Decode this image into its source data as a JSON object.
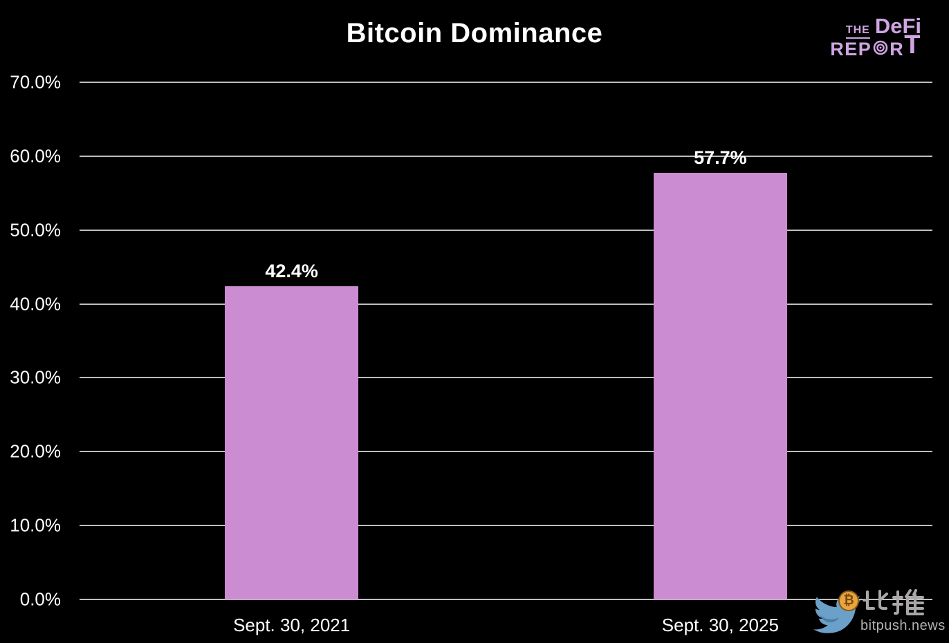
{
  "title": "Bitcoin Dominance",
  "logo": {
    "the": "THE",
    "defi": "DeFi",
    "rep": "REP",
    "r": "R",
    "t": "T"
  },
  "watermark": {
    "cn": "比推",
    "site": "bitpush.news",
    "coin_symbol": "₿"
  },
  "colors": {
    "background": "#000000",
    "bar": "#cb8cd1",
    "gridline": "#bfbfbf",
    "text": "#ffffff",
    "logo": "#cfa5e3",
    "watermark_text": "#b4b2b2",
    "bird_blue": "#6ba0c8",
    "coin_orange": "#e8a43f"
  },
  "chart_data": {
    "type": "bar",
    "title": "Bitcoin Dominance",
    "categories": [
      "Sept. 30, 2021",
      "Sept. 30, 2025"
    ],
    "values": [
      42.4,
      57.7
    ],
    "bar_labels": [
      "42.4%",
      "57.7%"
    ],
    "xlabel": "",
    "ylabel": "",
    "ylim": [
      0,
      70
    ],
    "ytick_values": [
      0,
      10,
      20,
      30,
      40,
      50,
      60,
      70
    ],
    "ytick_labels": [
      "0.0%",
      "10.0%",
      "20.0%",
      "30.0%",
      "40.0%",
      "50.0%",
      "60.0%",
      "70.0%"
    ],
    "grid": true,
    "legend": false
  }
}
